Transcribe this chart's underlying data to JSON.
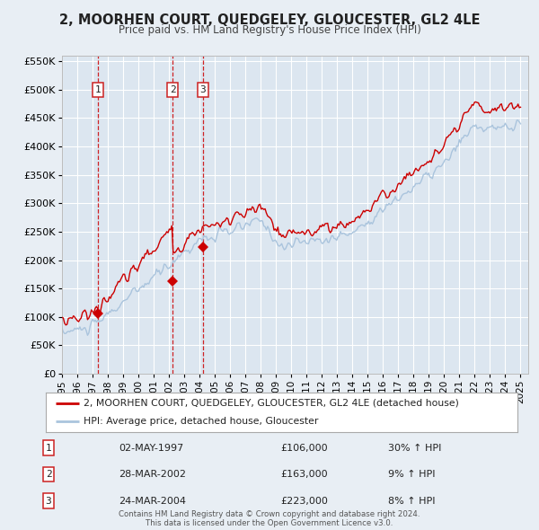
{
  "title": "2, MOORHEN COURT, QUEDGELEY, GLOUCESTER, GL2 4LE",
  "subtitle": "Price paid vs. HM Land Registry's House Price Index (HPI)",
  "xlim": [
    1995.0,
    2025.5
  ],
  "ylim": [
    0,
    560000
  ],
  "yticks": [
    0,
    50000,
    100000,
    150000,
    200000,
    250000,
    300000,
    350000,
    400000,
    450000,
    500000,
    550000
  ],
  "ytick_labels": [
    "£0",
    "£50K",
    "£100K",
    "£150K",
    "£200K",
    "£250K",
    "£300K",
    "£350K",
    "£400K",
    "£450K",
    "£500K",
    "£550K"
  ],
  "xticks": [
    1995,
    1996,
    1997,
    1998,
    1999,
    2000,
    2001,
    2002,
    2003,
    2004,
    2005,
    2006,
    2007,
    2008,
    2009,
    2010,
    2011,
    2012,
    2013,
    2014,
    2015,
    2016,
    2017,
    2018,
    2019,
    2020,
    2021,
    2022,
    2023,
    2024,
    2025
  ],
  "red_color": "#cc0000",
  "blue_color": "#aac4dd",
  "bg_color": "#e8eef4",
  "plot_bg": "#dce6f0",
  "grid_color": "#ffffff",
  "sale_dates": [
    1997.34,
    2002.24,
    2004.23
  ],
  "sale_prices": [
    106000,
    163000,
    223000
  ],
  "sale_labels": [
    "1",
    "2",
    "3"
  ],
  "sale_info": [
    {
      "label": "1",
      "date": "02-MAY-1997",
      "price": "£106,000",
      "hpi": "30% ↑ HPI"
    },
    {
      "label": "2",
      "date": "28-MAR-2002",
      "price": "£163,000",
      "hpi": "9% ↑ HPI"
    },
    {
      "label": "3",
      "date": "24-MAR-2004",
      "price": "£223,000",
      "hpi": "8% ↑ HPI"
    }
  ],
  "legend_red_label": "2, MOORHEN COURT, QUEDGELEY, GLOUCESTER, GL2 4LE (detached house)",
  "legend_blue_label": "HPI: Average price, detached house, Gloucester",
  "footer": "Contains HM Land Registry data © Crown copyright and database right 2024.\nThis data is licensed under the Open Government Licence v3.0."
}
